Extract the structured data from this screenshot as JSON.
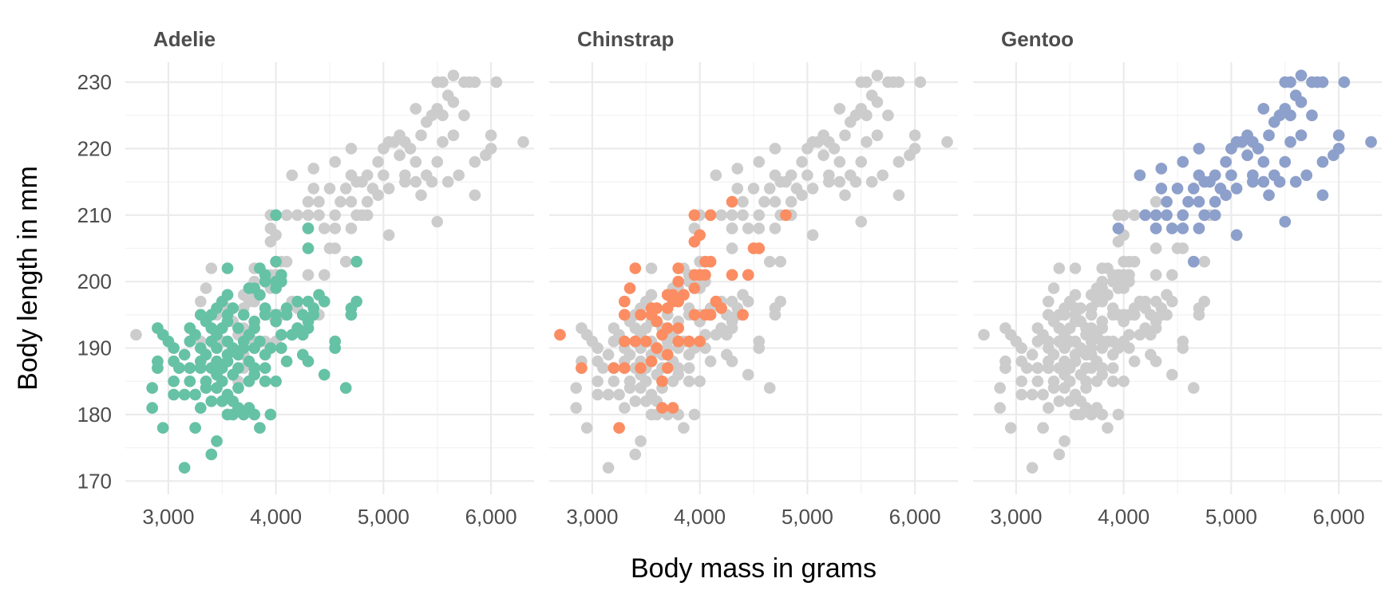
{
  "chart_data": {
    "type": "scatter",
    "title": "",
    "xlabel": "Body mass in grams",
    "ylabel": "Body length in mm",
    "xlim": [
      2600,
      6400
    ],
    "ylim": [
      168,
      233
    ],
    "x_ticks": [
      3000,
      4000,
      5000,
      6000
    ],
    "x_tick_labels": [
      "3,000",
      "4,000",
      "5,000",
      "6,000"
    ],
    "y_ticks": [
      170,
      180,
      190,
      200,
      210,
      220,
      230
    ],
    "y_tick_labels": [
      "170",
      "180",
      "190",
      "200",
      "210",
      "220",
      "230"
    ],
    "grid": true,
    "legend": "none",
    "background_color": "#cccccc",
    "facets": [
      "Adelie",
      "Chinstrap",
      "Gentoo"
    ],
    "series": [
      {
        "name": "Adelie",
        "color": "#66c2a5",
        "points": [
          [
            3150,
            172
          ],
          [
            3400,
            174
          ],
          [
            3450,
            176
          ],
          [
            2950,
            178
          ],
          [
            3250,
            178
          ],
          [
            3850,
            178
          ],
          [
            2850,
            181
          ],
          [
            3550,
            180
          ],
          [
            3600,
            180
          ],
          [
            3700,
            180
          ],
          [
            3800,
            180
          ],
          [
            3950,
            180
          ],
          [
            3650,
            181
          ],
          [
            3750,
            181
          ],
          [
            3300,
            181
          ],
          [
            3400,
            182
          ],
          [
            3500,
            182
          ],
          [
            3600,
            182
          ],
          [
            2850,
            184
          ],
          [
            3350,
            184
          ],
          [
            3450,
            184
          ],
          [
            3650,
            184
          ],
          [
            4650,
            184
          ],
          [
            3050,
            183
          ],
          [
            3150,
            183
          ],
          [
            3250,
            183
          ],
          [
            3550,
            183
          ],
          [
            3050,
            185
          ],
          [
            3200,
            185
          ],
          [
            3350,
            185
          ],
          [
            3500,
            185
          ],
          [
            3750,
            185
          ],
          [
            3900,
            185
          ],
          [
            4000,
            185
          ],
          [
            3450,
            186
          ],
          [
            3600,
            186
          ],
          [
            3800,
            186
          ],
          [
            4450,
            186
          ],
          [
            2900,
            187
          ],
          [
            3100,
            187
          ],
          [
            3200,
            187
          ],
          [
            3300,
            187
          ],
          [
            3400,
            187
          ],
          [
            3500,
            187
          ],
          [
            3650,
            187
          ],
          [
            3800,
            187
          ],
          [
            3900,
            187
          ],
          [
            2900,
            188
          ],
          [
            3050,
            188
          ],
          [
            3300,
            188
          ],
          [
            3450,
            188
          ],
          [
            3550,
            188
          ],
          [
            3750,
            188
          ],
          [
            4100,
            188
          ],
          [
            4300,
            188
          ],
          [
            3150,
            189
          ],
          [
            3350,
            189
          ],
          [
            3550,
            189
          ],
          [
            3650,
            189
          ],
          [
            3900,
            189
          ],
          [
            4250,
            189
          ],
          [
            3050,
            190
          ],
          [
            3300,
            190
          ],
          [
            3450,
            190
          ],
          [
            3600,
            190
          ],
          [
            3700,
            190
          ],
          [
            3800,
            190
          ],
          [
            3950,
            190
          ],
          [
            4050,
            190
          ],
          [
            4550,
            190
          ],
          [
            3000,
            191
          ],
          [
            3200,
            191
          ],
          [
            3400,
            191
          ],
          [
            3550,
            191
          ],
          [
            3700,
            191
          ],
          [
            3850,
            191
          ],
          [
            4550,
            191
          ],
          [
            2950,
            192
          ],
          [
            3250,
            192
          ],
          [
            3450,
            192
          ],
          [
            3750,
            192
          ],
          [
            4050,
            192
          ],
          [
            4150,
            192
          ],
          [
            4250,
            192
          ],
          [
            2900,
            193
          ],
          [
            3200,
            193
          ],
          [
            3400,
            193
          ],
          [
            3500,
            193
          ],
          [
            3650,
            193
          ],
          [
            3800,
            193
          ],
          [
            4200,
            193
          ],
          [
            4300,
            193
          ],
          [
            3350,
            194
          ],
          [
            3550,
            194
          ],
          [
            3800,
            194
          ],
          [
            4000,
            194
          ],
          [
            4300,
            194
          ],
          [
            3300,
            195
          ],
          [
            3400,
            195
          ],
          [
            3550,
            195
          ],
          [
            3700,
            195
          ],
          [
            3900,
            195
          ],
          [
            4000,
            195
          ],
          [
            4100,
            195
          ],
          [
            4250,
            195
          ],
          [
            4350,
            195
          ],
          [
            4700,
            195
          ],
          [
            3450,
            196
          ],
          [
            3600,
            196
          ],
          [
            3900,
            196
          ],
          [
            4100,
            196
          ],
          [
            4350,
            196
          ],
          [
            4700,
            196
          ],
          [
            3500,
            197
          ],
          [
            4200,
            197
          ],
          [
            4300,
            197
          ],
          [
            4450,
            197
          ],
          [
            4750,
            197
          ],
          [
            3550,
            198
          ],
          [
            3850,
            198
          ],
          [
            4400,
            198
          ],
          [
            3750,
            199
          ],
          [
            3800,
            199
          ],
          [
            4000,
            199
          ],
          [
            3900,
            200
          ],
          [
            4000,
            200
          ],
          [
            4050,
            200
          ],
          [
            3900,
            201
          ],
          [
            4050,
            201
          ],
          [
            3550,
            202
          ],
          [
            3850,
            202
          ],
          [
            4000,
            203
          ],
          [
            4750,
            203
          ],
          [
            4300,
            205
          ],
          [
            4300,
            208
          ],
          [
            4000,
            210
          ]
        ]
      },
      {
        "name": "Chinstrap",
        "color": "#fc8d62",
        "points": [
          [
            2700,
            192
          ],
          [
            2900,
            187
          ],
          [
            3250,
            178
          ],
          [
            3200,
            187
          ],
          [
            3300,
            187
          ],
          [
            3450,
            187
          ],
          [
            3650,
            181
          ],
          [
            3750,
            181
          ],
          [
            3650,
            185
          ],
          [
            3700,
            187
          ],
          [
            3300,
            191
          ],
          [
            3400,
            191
          ],
          [
            3500,
            191
          ],
          [
            3650,
            192
          ],
          [
            3800,
            191
          ],
          [
            3900,
            191
          ],
          [
            4000,
            191
          ],
          [
            3550,
            188
          ],
          [
            3700,
            189
          ],
          [
            3600,
            190
          ],
          [
            3300,
            195
          ],
          [
            3450,
            195
          ],
          [
            3550,
            195
          ],
          [
            3600,
            194
          ],
          [
            3700,
            193
          ],
          [
            3800,
            193
          ],
          [
            3950,
            195
          ],
          [
            4050,
            195
          ],
          [
            4100,
            195
          ],
          [
            4200,
            196
          ],
          [
            4400,
            195
          ],
          [
            3300,
            197
          ],
          [
            3350,
            199
          ],
          [
            3400,
            202
          ],
          [
            3550,
            196
          ],
          [
            3600,
            196
          ],
          [
            3700,
            196
          ],
          [
            3750,
            197
          ],
          [
            3800,
            197
          ],
          [
            3850,
            198
          ],
          [
            3950,
            199
          ],
          [
            4150,
            197
          ],
          [
            3700,
            198
          ],
          [
            3750,
            198
          ],
          [
            3800,
            200
          ],
          [
            3800,
            202
          ],
          [
            3950,
            201
          ],
          [
            4050,
            201
          ],
          [
            4000,
            201
          ],
          [
            4050,
            203
          ],
          [
            4100,
            203
          ],
          [
            4300,
            201
          ],
          [
            4450,
            201
          ],
          [
            4500,
            205
          ],
          [
            4550,
            205
          ],
          [
            3950,
            206
          ],
          [
            4000,
            207
          ],
          [
            3950,
            210
          ],
          [
            4100,
            210
          ],
          [
            4300,
            212
          ],
          [
            4800,
            210
          ]
        ]
      },
      {
        "name": "Gentoo",
        "color": "#8da0cb",
        "points": [
          [
            3950,
            208
          ],
          [
            4650,
            203
          ],
          [
            4150,
            216
          ],
          [
            4200,
            210
          ],
          [
            4300,
            210
          ],
          [
            4300,
            208
          ],
          [
            4450,
            208
          ],
          [
            4550,
            208
          ],
          [
            4700,
            208
          ],
          [
            4400,
            210
          ],
          [
            4550,
            210
          ],
          [
            4750,
            210
          ],
          [
            4850,
            210
          ],
          [
            4400,
            212
          ],
          [
            4600,
            212
          ],
          [
            4700,
            212
          ],
          [
            4850,
            212
          ],
          [
            4350,
            214
          ],
          [
            4500,
            214
          ],
          [
            4650,
            214
          ],
          [
            4350,
            217
          ],
          [
            4550,
            218
          ],
          [
            4700,
            220
          ],
          [
            4700,
            216
          ],
          [
            4750,
            215
          ],
          [
            4800,
            215
          ],
          [
            4850,
            216
          ],
          [
            4900,
            214
          ],
          [
            4950,
            213
          ],
          [
            5000,
            216
          ],
          [
            5050,
            214
          ],
          [
            4950,
            218
          ],
          [
            5000,
            220
          ],
          [
            5050,
            221
          ],
          [
            5100,
            221
          ],
          [
            5150,
            219
          ],
          [
            5200,
            216
          ],
          [
            5300,
            218
          ],
          [
            5350,
            213
          ],
          [
            5400,
            216
          ],
          [
            5500,
            218
          ],
          [
            5050,
            207
          ],
          [
            5200,
            215
          ],
          [
            5300,
            215
          ],
          [
            5450,
            215
          ],
          [
            5500,
            209
          ],
          [
            5600,
            215
          ],
          [
            5150,
            222
          ],
          [
            5200,
            221
          ],
          [
            5250,
            220
          ],
          [
            5350,
            222
          ],
          [
            5400,
            224
          ],
          [
            5550,
            225
          ],
          [
            5300,
            226
          ],
          [
            5450,
            225
          ],
          [
            5500,
            226
          ],
          [
            5650,
            227
          ],
          [
            5750,
            225
          ],
          [
            5850,
            213
          ],
          [
            5700,
            216
          ],
          [
            5950,
            219
          ],
          [
            5500,
            230
          ],
          [
            5550,
            230
          ],
          [
            5600,
            228
          ],
          [
            5650,
            231
          ],
          [
            5750,
            230
          ],
          [
            5800,
            230
          ],
          [
            5850,
            230
          ],
          [
            6050,
            230
          ],
          [
            5550,
            221
          ],
          [
            5650,
            222
          ],
          [
            5850,
            218
          ],
          [
            6000,
            220
          ],
          [
            6000,
            222
          ],
          [
            6300,
            221
          ]
        ]
      }
    ]
  }
}
